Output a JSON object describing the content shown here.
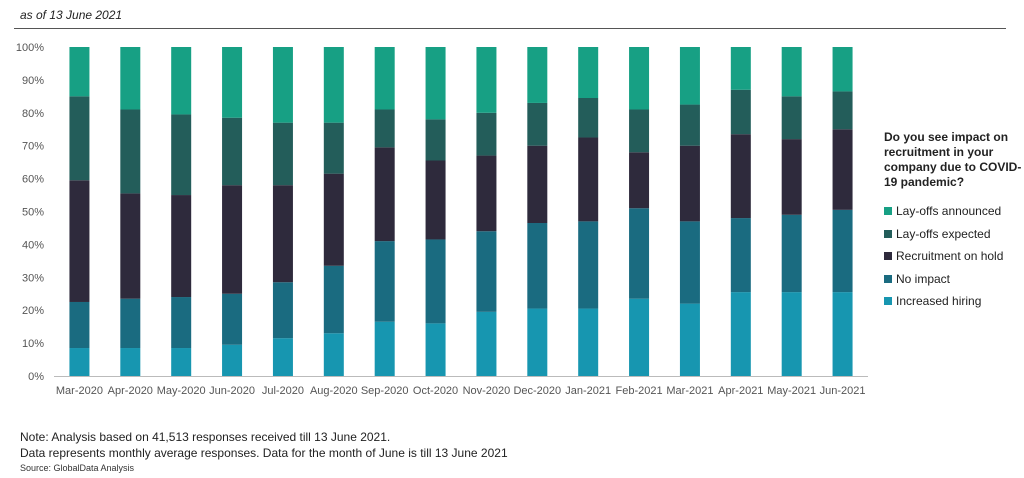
{
  "header": {
    "date_label": "as of 13 June 2021"
  },
  "chart_data": {
    "type": "bar",
    "stacked": true,
    "ylim": [
      0,
      100
    ],
    "yticks": [
      "0%",
      "10%",
      "20%",
      "30%",
      "40%",
      "50%",
      "60%",
      "70%",
      "80%",
      "90%",
      "100%"
    ],
    "categories": [
      "Mar-2020",
      "Apr-2020",
      "May-2020",
      "Jun-2020",
      "Jul-2020",
      "Aug-2020",
      "Sep-2020",
      "Oct-2020",
      "Nov-2020",
      "Dec-2020",
      "Jan-2021",
      "Feb-2021",
      "Mar-2021",
      "Apr-2021",
      "May-2021",
      "Jun-2021"
    ],
    "series": [
      {
        "name": "Increased hiring",
        "color": "#1796b0",
        "values": [
          8.5,
          8.5,
          8.5,
          9.5,
          11.5,
          13,
          16.5,
          16,
          19.5,
          20.5,
          20.5,
          23.5,
          22,
          25.5,
          25.5,
          25.5
        ]
      },
      {
        "name": "No impact",
        "color": "#1a6b80",
        "values": [
          14,
          15,
          15.5,
          15.5,
          17,
          20.5,
          24.5,
          25.5,
          24.5,
          26,
          26.5,
          27.5,
          25,
          22.5,
          23.5,
          25
        ]
      },
      {
        "name": "Recruitment on hold",
        "color": "#2e2a3c",
        "values": [
          37,
          32,
          31,
          33,
          29.5,
          28,
          28.5,
          24,
          23,
          23.5,
          25.5,
          17,
          23,
          25.5,
          23,
          24.5
        ]
      },
      {
        "name": "Lay-offs expected",
        "color": "#235d5a",
        "values": [
          25.5,
          25.5,
          24.5,
          20.5,
          19,
          15.5,
          11.5,
          12.5,
          13,
          13,
          12,
          13,
          12.5,
          13.5,
          13,
          11.5
        ]
      },
      {
        "name": "Lay-offs announced",
        "color": "#17a084",
        "values": [
          15,
          19,
          20.5,
          21.5,
          23,
          23,
          19,
          22,
          20,
          17,
          15.5,
          19,
          17.5,
          13,
          15,
          13.5
        ]
      }
    ],
    "legend": {
      "title": "Do you see impact on recruitment in your company due to COVID-19 pandemic?",
      "position": "right",
      "order": [
        "Lay-offs announced",
        "Lay-offs expected",
        "Recruitment on hold",
        "No impact",
        "Increased hiring"
      ]
    },
    "grid": false
  },
  "footer": {
    "note_line1": "Note: Analysis based on 41,513 responses received till 13 June 2021.",
    "note_line2": "Data represents monthly average responses. Data for the month of June is till 13 June 2021",
    "source": "Source: GlobalData Analysis"
  }
}
